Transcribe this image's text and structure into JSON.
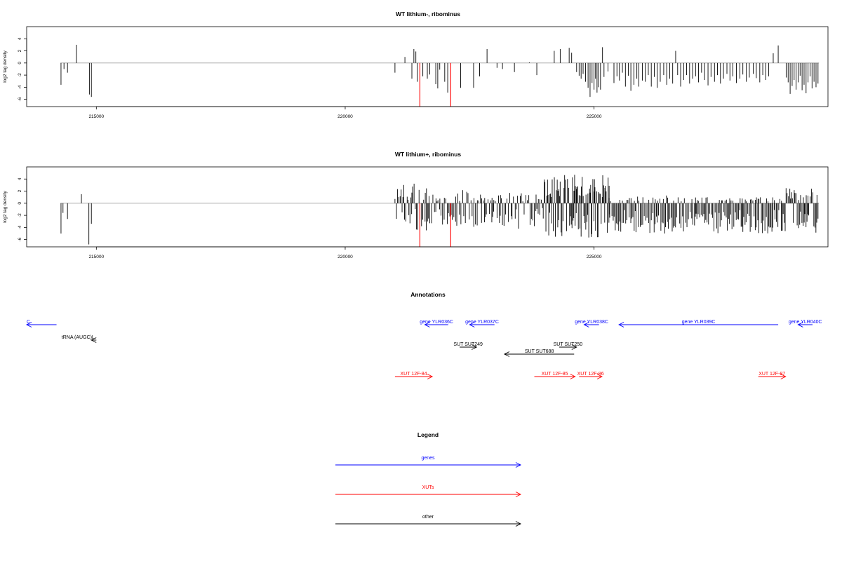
{
  "colors": {
    "gene": "#0000ff",
    "xut": "#ff0000",
    "other": "#000000",
    "highlight": "#ff0000",
    "baseline": "#a0a0a0",
    "bars": "#000000"
  },
  "chart_data": [
    {
      "type": "bar",
      "title": "WT lithium-, ribominus",
      "ylabel": "log2 tag density",
      "xlim": [
        213600,
        229700
      ],
      "ylim": [
        -7.2,
        6
      ],
      "yticks": [
        4,
        2,
        0,
        -2,
        -4,
        -6
      ],
      "xticks": [
        215000,
        220000,
        225000
      ],
      "highlight_positions": [
        221500,
        222120
      ],
      "baseline": 0,
      "bars": [
        [
          214290,
          -3.6
        ],
        [
          214350,
          -1.0
        ],
        [
          214420,
          -1.6
        ],
        [
          214600,
          3.0
        ],
        [
          214860,
          -5.2
        ],
        [
          214900,
          -5.6
        ],
        [
          221000,
          -1.6
        ],
        [
          221200,
          1.0
        ],
        [
          221340,
          -2.6
        ],
        [
          221380,
          2.3
        ],
        [
          221420,
          1.9
        ],
        [
          221450,
          -3.1
        ],
        [
          221560,
          -2.2
        ],
        [
          221650,
          -2.6
        ],
        [
          221700,
          -1.9
        ],
        [
          221820,
          -3.5
        ],
        [
          221860,
          -4.2
        ],
        [
          221900,
          -1.1
        ],
        [
          222000,
          -3.1
        ],
        [
          222060,
          -4.9
        ],
        [
          222320,
          -4.1
        ],
        [
          222580,
          -4.1
        ],
        [
          222700,
          -2.2
        ],
        [
          222850,
          2.3
        ],
        [
          223050,
          -0.8
        ],
        [
          223160,
          -1.0
        ],
        [
          223400,
          -1.5
        ],
        [
          223700,
          0.1
        ],
        [
          223850,
          -2.0
        ],
        [
          224200,
          2.0
        ],
        [
          224320,
          2.3
        ],
        [
          224500,
          2.5
        ],
        [
          224550,
          1.7
        ],
        [
          224650,
          -1.5
        ],
        [
          224700,
          -2.1
        ],
        [
          224740,
          -2.6
        ],
        [
          224780,
          -1.8
        ],
        [
          224830,
          -3.1
        ],
        [
          224880,
          -4.1
        ],
        [
          224920,
          -5.6
        ],
        [
          224960,
          -3.3
        ],
        [
          225000,
          -4.4
        ],
        [
          225030,
          -2.6
        ],
        [
          225060,
          -4.9
        ],
        [
          225090,
          -4.0
        ],
        [
          225130,
          -4.4
        ],
        [
          225170,
          2.6
        ],
        [
          225200,
          -2.3
        ],
        [
          225280,
          -1.4
        ],
        [
          225400,
          -3.3
        ],
        [
          225460,
          -2.2
        ],
        [
          225510,
          -2.9
        ],
        [
          225570,
          -1.6
        ],
        [
          225630,
          -3.9
        ],
        [
          225690,
          -2.1
        ],
        [
          225740,
          -4.6
        ],
        [
          225800,
          -3.6
        ],
        [
          225860,
          -2.6
        ],
        [
          225900,
          -3.9
        ],
        [
          225970,
          -2.9
        ],
        [
          226030,
          -3.1
        ],
        [
          226090,
          -2.0
        ],
        [
          226150,
          -3.9
        ],
        [
          226210,
          -2.3
        ],
        [
          226270,
          -4.1
        ],
        [
          226330,
          -3.1
        ],
        [
          226400,
          -2.0
        ],
        [
          226460,
          -3.6
        ],
        [
          226520,
          -2.6
        ],
        [
          226580,
          -3.4
        ],
        [
          226640,
          2.0
        ],
        [
          226680,
          -2.0
        ],
        [
          226740,
          -3.9
        ],
        [
          226800,
          -2.8
        ],
        [
          226860,
          -2.0
        ],
        [
          226920,
          -3.4
        ],
        [
          226980,
          -2.6
        ],
        [
          227040,
          -2.2
        ],
        [
          227100,
          -3.2
        ],
        [
          227160,
          -1.6
        ],
        [
          227220,
          -2.8
        ],
        [
          227290,
          -3.7
        ],
        [
          227350,
          -2.3
        ],
        [
          227420,
          -3.1
        ],
        [
          227480,
          -2.0
        ],
        [
          227540,
          -3.4
        ],
        [
          227600,
          -2.6
        ],
        [
          227670,
          -1.8
        ],
        [
          227730,
          -2.9
        ],
        [
          227790,
          -2.2
        ],
        [
          227860,
          -3.3
        ],
        [
          227930,
          -2.6
        ],
        [
          227990,
          -1.9
        ],
        [
          228060,
          -3.1
        ],
        [
          228120,
          -2.4
        ],
        [
          228200,
          -1.8
        ],
        [
          228260,
          -2.5
        ],
        [
          228330,
          -3.2
        ],
        [
          228390,
          -2.0
        ],
        [
          228450,
          -2.8
        ],
        [
          228510,
          -2.2
        ],
        [
          228600,
          1.6
        ],
        [
          228700,
          2.9
        ],
        [
          228860,
          -2.4
        ],
        [
          228900,
          -3.2
        ],
        [
          228940,
          -5.1
        ],
        [
          228980,
          -3.8
        ],
        [
          229020,
          -2.8
        ],
        [
          229060,
          -4.4
        ],
        [
          229100,
          -3.2
        ],
        [
          229140,
          -2.1
        ],
        [
          229180,
          -4.5
        ],
        [
          229220,
          -3.6
        ],
        [
          229260,
          -5.0
        ],
        [
          229300,
          -3.2
        ],
        [
          229340,
          -2.2
        ],
        [
          229380,
          -4.2
        ],
        [
          229420,
          -3.1
        ],
        [
          229460,
          -4.0
        ],
        [
          229500,
          -3.4
        ]
      ]
    },
    {
      "type": "bar",
      "title": "WT lithium+, ribominus",
      "ylabel": "log2 tag density",
      "xlim": [
        213600,
        229700
      ],
      "ylim": [
        -7.2,
        6
      ],
      "yticks": [
        4,
        2,
        0,
        -2,
        -4,
        -6
      ],
      "xticks": [
        215000,
        220000,
        225000
      ],
      "highlight_positions": [
        221500,
        222120
      ],
      "baseline": 0,
      "dense_seed": 7,
      "bars": [
        [
          214290,
          -5.0
        ],
        [
          214330,
          -1.6
        ],
        [
          214420,
          -2.6
        ],
        [
          214700,
          1.5
        ],
        [
          214850,
          -6.8
        ],
        [
          214900,
          -3.4
        ]
      ],
      "dense_regions": [
        {
          "from": 221000,
          "to": 221700,
          "step": 22,
          "pos": [
            0.5,
            3.8
          ],
          "neg": [
            0.5,
            4.5
          ],
          "pos_prob": 0.55
        },
        {
          "from": 221700,
          "to": 224000,
          "step": 26,
          "pos": [
            0.3,
            2.2
          ],
          "neg": [
            0.8,
            4.2
          ],
          "pos_prob": 0.35
        },
        {
          "from": 224000,
          "to": 225300,
          "step": 16,
          "pos": [
            1.0,
            4.8
          ],
          "neg": [
            1.5,
            5.8
          ],
          "pos_prob": 0.5
        },
        {
          "from": 225300,
          "to": 228800,
          "step": 24,
          "pos": [
            0.3,
            1.5
          ],
          "neg": [
            1.0,
            5.0
          ],
          "pos_prob": 0.12
        },
        {
          "from": 228800,
          "to": 229500,
          "step": 22,
          "pos": [
            0.5,
            2.5
          ],
          "neg": [
            1.2,
            5.0
          ],
          "pos_prob": 0.25
        }
      ]
    }
  ],
  "annotations": {
    "title": "Annotations",
    "items": [
      {
        "type": "gene",
        "label": "gene YLR036C",
        "from": 222070,
        "to": 221600,
        "row": 0
      },
      {
        "type": "gene",
        "label": "gene YLR037C",
        "from": 223000,
        "to": 222500,
        "row": 0
      },
      {
        "type": "gene",
        "label": "gene YLR038C",
        "from": 225100,
        "to": 224800,
        "row": 0
      },
      {
        "type": "gene",
        "label": "gene YLR039C",
        "from": 228700,
        "to": 225500,
        "row": 0
      },
      {
        "type": "gene",
        "label": "gene YLR040C",
        "from": 229600,
        "to": 229100,
        "row": 0
      },
      {
        "type": "gene",
        "label": "C",
        "from": 214200,
        "to": 213600,
        "row": 0
      },
      {
        "type": "other",
        "label": "tRNA (AUGC)L",
        "from": 215000,
        "to": 214900,
        "row": 1
      },
      {
        "type": "other",
        "label": "SUT SUT249",
        "from": 222300,
        "to": 222640,
        "row": 2
      },
      {
        "type": "other",
        "label": "SUT SUT250",
        "from": 224300,
        "to": 224650,
        "row": 2
      },
      {
        "type": "other",
        "label": "SUT SUT688",
        "from": 224600,
        "to": 223200,
        "row": 3
      },
      {
        "type": "xut",
        "label": "XUT 12F-84",
        "from": 221000,
        "to": 221750,
        "row": 4
      },
      {
        "type": "xut",
        "label": "XUT 12F-85",
        "from": 223800,
        "to": 224620,
        "row": 4
      },
      {
        "type": "xut",
        "label": "XUT 12F-86",
        "from": 224700,
        "to": 225160,
        "row": 4
      },
      {
        "type": "xut",
        "label": "XUT 12F-87",
        "from": 228300,
        "to": 228850,
        "row": 4
      }
    ]
  },
  "legend": {
    "title": "Legend",
    "entries": [
      {
        "label": "genes",
        "type": "gene"
      },
      {
        "label": "XUTs",
        "type": "xut"
      },
      {
        "label": "other",
        "type": "other"
      }
    ]
  }
}
